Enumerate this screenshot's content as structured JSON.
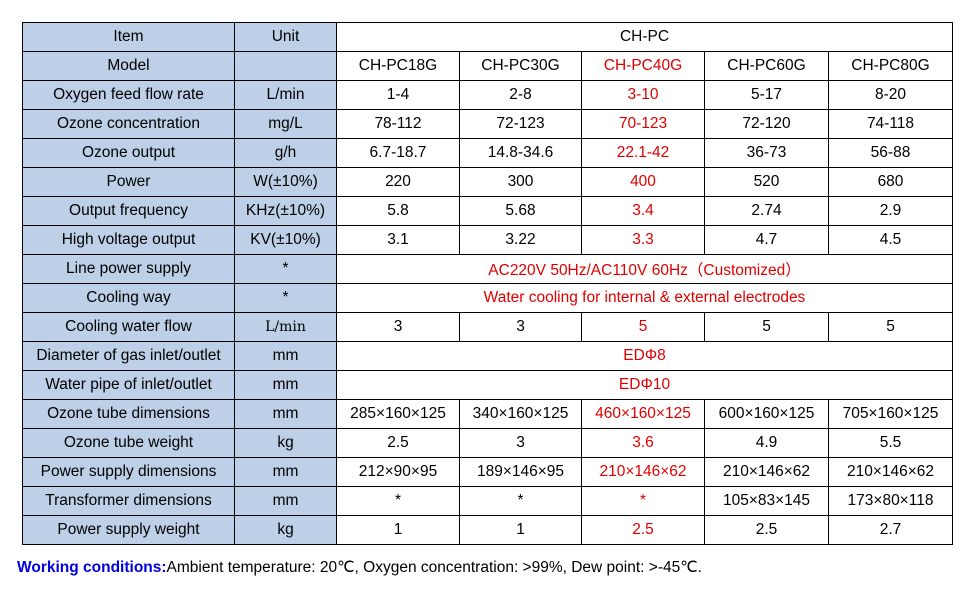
{
  "header": {
    "item": "Item",
    "unit": "Unit",
    "series": "CH-PC"
  },
  "highlight_color": "#e00000",
  "label_bg": "#bdd0e8",
  "rows": [
    {
      "label": "Model",
      "unit": "",
      "values": [
        "CH-PC18G",
        "CH-PC30G",
        "CH-PC40G",
        "CH-PC60G",
        "CH-PC80G"
      ]
    },
    {
      "label": "Oxygen feed flow rate",
      "unit": "L/min",
      "values": [
        "1-4",
        "2-8",
        "3-10",
        "5-17",
        "8-20"
      ]
    },
    {
      "label": "Ozone concentration",
      "unit": "mg/L",
      "values": [
        "78-112",
        "72-123",
        "70-123",
        "72-120",
        "74-118"
      ]
    },
    {
      "label": "Ozone output",
      "unit": "g/h",
      "values": [
        "6.7-18.7",
        "14.8-34.6",
        "22.1-42",
        "36-73",
        "56-88"
      ]
    },
    {
      "label": "Power",
      "unit": "W(±10%)",
      "values": [
        "220",
        "300",
        "400",
        "520",
        "680"
      ]
    },
    {
      "label": "Output frequency",
      "unit": "KHz(±10%)",
      "values": [
        "5.8",
        "5.68",
        "3.4",
        "2.74",
        "2.9"
      ]
    },
    {
      "label": "High voltage output",
      "unit": "KV(±10%)",
      "values": [
        "3.1",
        "3.22",
        "3.3",
        "4.7",
        "4.5"
      ]
    },
    {
      "label": "Line power supply",
      "unit": "*",
      "merged": "AC220V 50Hz/AC110V 60Hz（Customized）"
    },
    {
      "label": "Cooling way",
      "unit": "*",
      "merged": "Water cooling for internal & external electrodes"
    },
    {
      "label": "Cooling water flow",
      "unit": "L/min",
      "values": [
        "3",
        "3",
        "5",
        "5",
        "5"
      ]
    },
    {
      "label": "Diameter of gas inlet/outlet",
      "unit": "mm",
      "merged": "EDΦ8"
    },
    {
      "label": "Water pipe of inlet/outlet",
      "unit": "mm",
      "merged": "EDΦ10"
    },
    {
      "label": "Ozone tube dimensions",
      "unit": "mm",
      "values": [
        "285×160×125",
        "340×160×125",
        "460×160×125",
        "600×160×125",
        "705×160×125"
      ]
    },
    {
      "label": "Ozone tube weight",
      "unit": "kg",
      "values": [
        "2.5",
        "3",
        "3.6",
        "4.9",
        "5.5"
      ]
    },
    {
      "label": "Power supply dimensions",
      "unit": "mm",
      "values": [
        "212×90×95",
        "189×146×95",
        "210×146×62",
        "210×146×62",
        "210×146×62"
      ]
    },
    {
      "label": "Transformer dimensions",
      "unit": "mm",
      "values": [
        "*",
        "*",
        "*",
        "105×83×145",
        "173×80×118"
      ]
    },
    {
      "label": "Power supply weight",
      "unit": "kg",
      "values": [
        "1",
        "1",
        "2.5",
        "2.5",
        "2.7"
      ]
    }
  ],
  "working_conditions": {
    "label": "Working conditions:",
    "text": "Ambient temperature: 20℃, Oxygen concentration: >99%, Dew point: >-45℃."
  }
}
